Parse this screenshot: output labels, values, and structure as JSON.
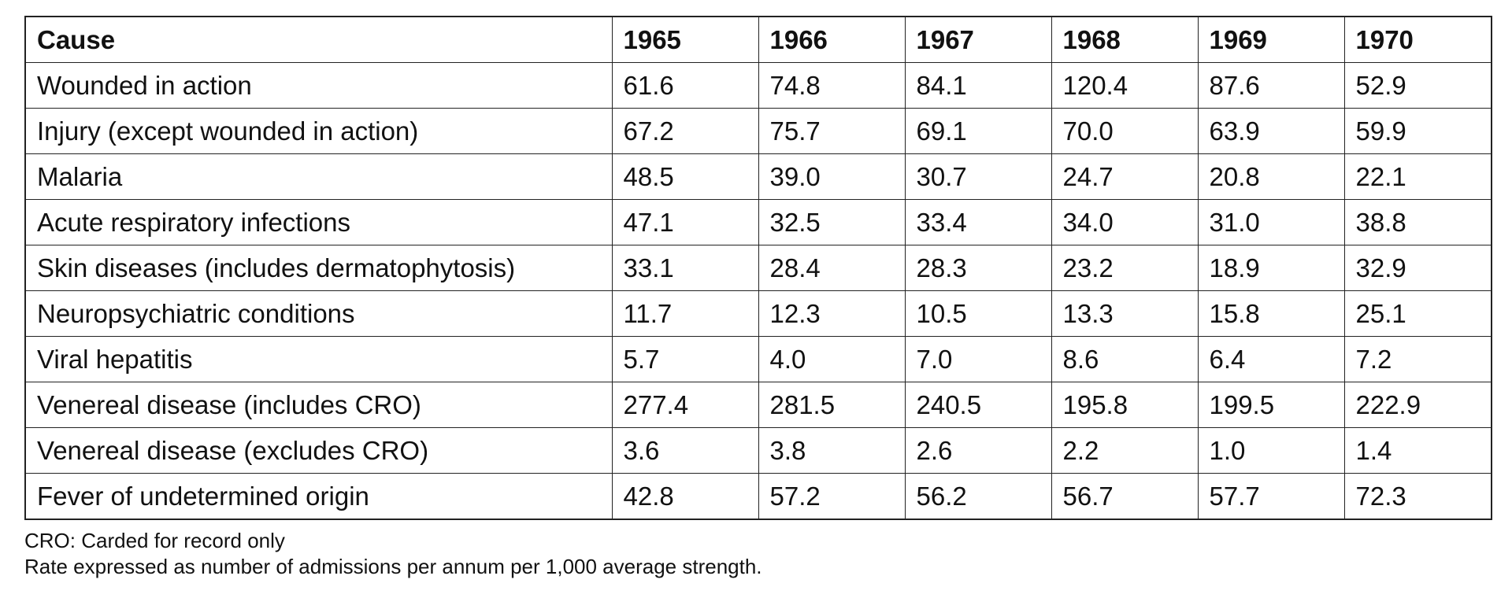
{
  "table": {
    "headers": [
      "Cause",
      "1965",
      "1966",
      "1967",
      "1968",
      "1969",
      "1970"
    ],
    "rows": [
      {
        "cause": "Wounded in action",
        "values": [
          "61.6",
          "74.8",
          "84.1",
          "120.4",
          "87.6",
          "52.9"
        ]
      },
      {
        "cause": "Injury (except wounded in action)",
        "values": [
          "67.2",
          "75.7",
          "69.1",
          "70.0",
          "63.9",
          "59.9"
        ]
      },
      {
        "cause": "Malaria",
        "values": [
          "48.5",
          "39.0",
          "30.7",
          "24.7",
          "20.8",
          "22.1"
        ]
      },
      {
        "cause": "Acute respiratory infections",
        "values": [
          "47.1",
          "32.5",
          "33.4",
          "34.0",
          "31.0",
          "38.8"
        ]
      },
      {
        "cause": "Skin diseases (includes dermatophytosis)",
        "values": [
          "33.1",
          "28.4",
          "28.3",
          "23.2",
          "18.9",
          "32.9"
        ]
      },
      {
        "cause": "Neuropsychiatric conditions",
        "values": [
          "11.7",
          "12.3",
          "10.5",
          "13.3",
          "15.8",
          "25.1"
        ]
      },
      {
        "cause": "Viral hepatitis",
        "values": [
          "5.7",
          "4.0",
          "7.0",
          "8.6",
          "6.4",
          "7.2"
        ]
      },
      {
        "cause": "Venereal disease (includes CRO)",
        "values": [
          "277.4",
          "281.5",
          "240.5",
          "195.8",
          "199.5",
          "222.9"
        ]
      },
      {
        "cause": "Venereal disease (excludes CRO)",
        "values": [
          "3.6",
          "3.8",
          "2.6",
          "2.2",
          "1.0",
          "1.4"
        ]
      },
      {
        "cause": "Fever of undetermined origin",
        "values": [
          "42.8",
          "57.2",
          "56.2",
          "56.7",
          "57.7",
          "72.3"
        ]
      }
    ]
  },
  "notes": {
    "abbreviation": "CRO: Carded for record only",
    "rate_definition": "Rate expressed as number of admissions per annum per 1,000 average strength."
  }
}
